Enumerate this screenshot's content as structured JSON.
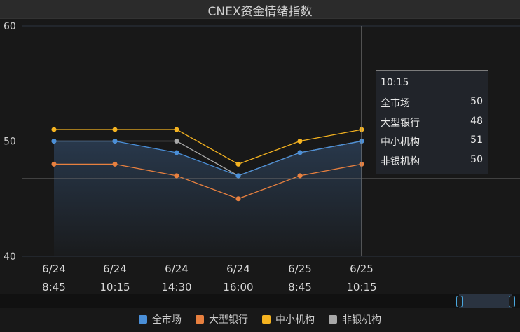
{
  "title": "CNEX资金情绪指数",
  "chart_data": {
    "type": "line",
    "title": "CNEX资金情绪指数",
    "categories": [
      [
        "6/24",
        "8:45"
      ],
      [
        "6/24",
        "10:15"
      ],
      [
        "6/24",
        "14:30"
      ],
      [
        "6/24",
        "16:00"
      ],
      [
        "6/25",
        "8:45"
      ],
      [
        "6/25",
        "10:15"
      ]
    ],
    "ylim": [
      40,
      60
    ],
    "yticks": [
      "60",
      "50",
      "40"
    ],
    "grid": true,
    "legend_position": "bottom",
    "series": [
      {
        "name": "全市场",
        "color": "#4a8fd8",
        "values": [
          50,
          50,
          49,
          47,
          49,
          50
        ],
        "area": true
      },
      {
        "name": "大型银行",
        "color": "#e8803f",
        "values": [
          48,
          48,
          47,
          45,
          47,
          48
        ]
      },
      {
        "name": "中小机构",
        "color": "#f5b320",
        "values": [
          51,
          51,
          51,
          48,
          50,
          51
        ]
      },
      {
        "name": "非银机构",
        "color": "#a8a8a8",
        "values": [
          50,
          50,
          50,
          47,
          49,
          50
        ]
      }
    ],
    "tooltip": {
      "time": "10:15",
      "rows": [
        {
          "name": "全市场",
          "value": "50"
        },
        {
          "name": "大型银行",
          "value": "48"
        },
        {
          "name": "中小机构",
          "value": "51"
        },
        {
          "name": "非银机构",
          "value": "50"
        }
      ]
    }
  },
  "legend": {
    "items": [
      {
        "label": "全市场",
        "color": "#4a8fd8"
      },
      {
        "label": "大型银行",
        "color": "#e8803f"
      },
      {
        "label": "中小机构",
        "color": "#f5b320"
      },
      {
        "label": "非银机构",
        "color": "#a8a8a8"
      }
    ]
  }
}
